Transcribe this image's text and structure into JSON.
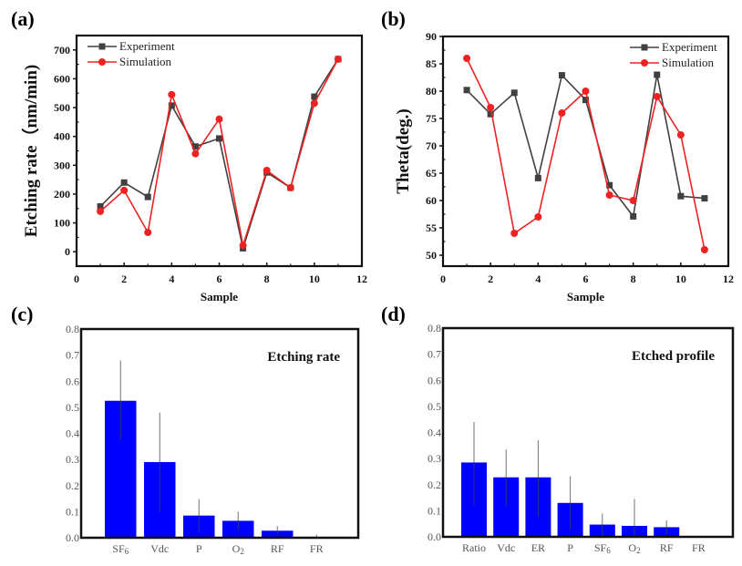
{
  "chart_data": [
    {
      "panel": "(a)",
      "type": "line",
      "title": "",
      "xlabel": "Sample",
      "ylabel": "Etching rate（nm/min)",
      "xlim": [
        0,
        12
      ],
      "ylim": [
        -50,
        750
      ],
      "xticks": [
        0,
        2,
        4,
        6,
        8,
        10,
        12
      ],
      "yticks": [
        0,
        100,
        200,
        300,
        400,
        500,
        600,
        700
      ],
      "grid": false,
      "legend_position": "top-left",
      "x": [
        1,
        2,
        3,
        4,
        5,
        6,
        7,
        8,
        9,
        10,
        11
      ],
      "series": [
        {
          "name": "Experiment",
          "color": "#404040",
          "marker": "square",
          "values": [
            157,
            240,
            190,
            507,
            365,
            393,
            12,
            275,
            222,
            538,
            668
          ]
        },
        {
          "name": "Simulation",
          "color": "#ee2222",
          "marker": "circle",
          "values": [
            140,
            213,
            67,
            545,
            340,
            460,
            22,
            282,
            222,
            515,
            668
          ]
        }
      ]
    },
    {
      "panel": "(b)",
      "type": "line",
      "title": "",
      "xlabel": "Sample",
      "ylabel": "Theta(deg.)",
      "xlim": [
        0,
        12
      ],
      "ylim": [
        48,
        90
      ],
      "xticks": [
        0,
        2,
        4,
        6,
        8,
        10,
        12
      ],
      "yticks": [
        50,
        55,
        60,
        65,
        70,
        75,
        80,
        85,
        90
      ],
      "grid": false,
      "legend_position": "top-right",
      "x": [
        1,
        2,
        3,
        4,
        5,
        6,
        7,
        8,
        9,
        10,
        11
      ],
      "series": [
        {
          "name": "Experiment",
          "color": "#404040",
          "marker": "square",
          "values": [
            80.2,
            75.8,
            79.7,
            64.1,
            82.9,
            78.4,
            62.8,
            57.1,
            83.0,
            60.8,
            60.4
          ]
        },
        {
          "name": "Simulation",
          "color": "#ee2222",
          "marker": "circle",
          "values": [
            86,
            77,
            54,
            57,
            76,
            80,
            61,
            60,
            79,
            72,
            51
          ]
        }
      ]
    },
    {
      "panel": "(c)",
      "type": "bar",
      "title": "Etching rate",
      "xlabel": "",
      "ylabel": "",
      "ylim": [
        0,
        0.8
      ],
      "yticks": [
        "0.0",
        "0.1",
        "0.2",
        "0.3",
        "0.4",
        "0.5",
        "0.6",
        "0.7",
        "0.8"
      ],
      "grid": false,
      "bar_color": "#0000ff",
      "categories": [
        "SF6",
        "Vdc",
        "P",
        "O2",
        "RF",
        "FR"
      ],
      "category_labels": [
        [
          "SF",
          "6"
        ],
        [
          "Vdc",
          ""
        ],
        [
          "P",
          ""
        ],
        [
          "O",
          "2"
        ],
        [
          "RF",
          ""
        ],
        [
          "FR",
          ""
        ]
      ],
      "values": [
        0.525,
        0.29,
        0.085,
        0.065,
        0.027,
        0.002
      ],
      "error_low": [
        0.375,
        0.1,
        0.02,
        0.03,
        0.01,
        0.0
      ],
      "error_high": [
        0.68,
        0.48,
        0.148,
        0.1,
        0.045,
        0.012
      ]
    },
    {
      "panel": "(d)",
      "type": "bar",
      "title": "Etched profile",
      "xlabel": "",
      "ylabel": "",
      "ylim": [
        0,
        0.8
      ],
      "yticks": [
        "0.0",
        "0.1",
        "0.2",
        "0.3",
        "0.4",
        "0.5",
        "0.6",
        "0.7",
        "0.8"
      ],
      "grid": false,
      "bar_color": "#0000ff",
      "categories": [
        "Ratio",
        "Vdc",
        "ER",
        "P",
        "SF6",
        "O2",
        "RF",
        "FR"
      ],
      "category_labels": [
        [
          "Ratio",
          ""
        ],
        [
          "Vdc",
          ""
        ],
        [
          "ER",
          ""
        ],
        [
          "P",
          ""
        ],
        [
          "SF",
          "6"
        ],
        [
          "O",
          "2"
        ],
        [
          "RF",
          ""
        ],
        [
          "FR",
          ""
        ]
      ],
      "values": [
        0.285,
        0.228,
        0.228,
        0.13,
        0.047,
        0.042,
        0.037,
        0.0
      ],
      "error_low": [
        0.12,
        0.12,
        0.08,
        0.03,
        0.0,
        0.0,
        0.01,
        0.0
      ],
      "error_high": [
        0.44,
        0.335,
        0.37,
        0.232,
        0.09,
        0.145,
        0.063,
        0.0
      ]
    }
  ]
}
